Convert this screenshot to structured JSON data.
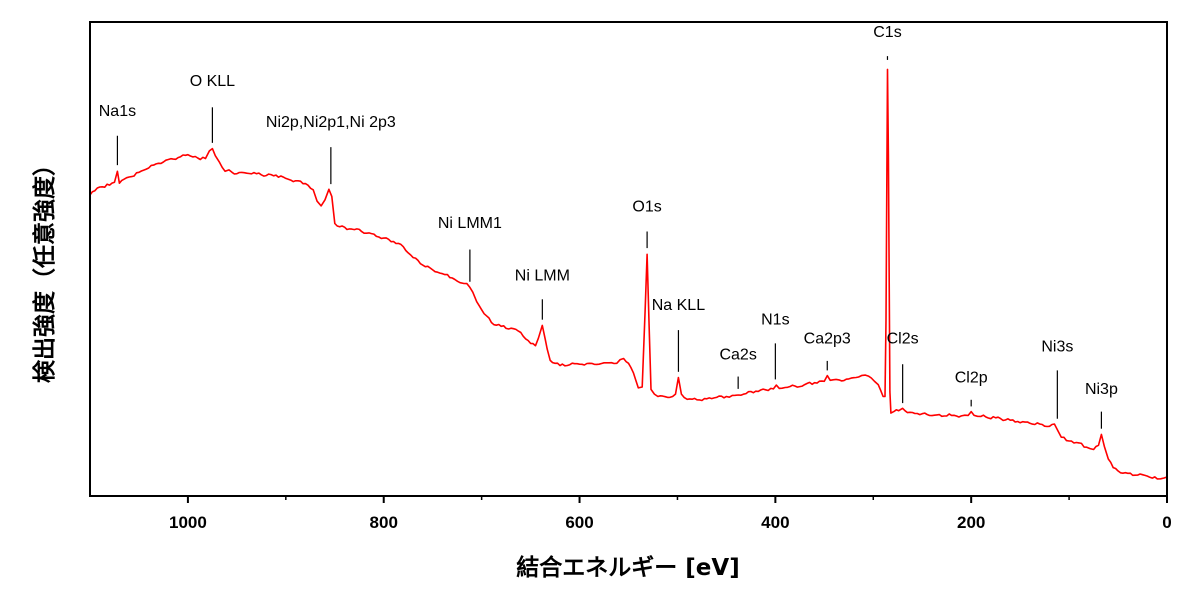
{
  "chart_data": {
    "type": "line",
    "xlabel": "結合エネルギー [eV]",
    "ylabel": "検出強度（任意強度）",
    "xlim": [
      1100,
      0
    ],
    "ylim": [
      0,
      100
    ],
    "x_reversed": true,
    "y_tick_labels": false,
    "grid": false,
    "line_color": "#ff0000",
    "x_ticks": [
      {
        "value": 1000,
        "label": "1000"
      },
      {
        "value": 800,
        "label": "800"
      },
      {
        "value": 600,
        "label": "600"
      },
      {
        "value": 400,
        "label": "400"
      },
      {
        "value": 200,
        "label": "200"
      },
      {
        "value": 0,
        "label": "0"
      }
    ],
    "series": [
      {
        "color": "#ff0000",
        "points": [
          [
            1100,
            63.5
          ],
          [
            1090,
            65.2
          ],
          [
            1080,
            65.6
          ],
          [
            1075,
            66.2
          ],
          [
            1072,
            68.5
          ],
          [
            1070,
            66.0
          ],
          [
            1060,
            67.3
          ],
          [
            1050,
            68.3
          ],
          [
            1040,
            69.2
          ],
          [
            1030,
            70.2
          ],
          [
            1020,
            71.0
          ],
          [
            1010,
            71.4
          ],
          [
            1000,
            72.0
          ],
          [
            990,
            71.3
          ],
          [
            982,
            71.2
          ],
          [
            978,
            72.8
          ],
          [
            975,
            73.3
          ],
          [
            972,
            71.8
          ],
          [
            968,
            70.5
          ],
          [
            962,
            68.5
          ],
          [
            958,
            68.8
          ],
          [
            955,
            68.3
          ],
          [
            950,
            68.0
          ],
          [
            940,
            68.1
          ],
          [
            930,
            68.0
          ],
          [
            920,
            67.6
          ],
          [
            910,
            67.7
          ],
          [
            900,
            67.0
          ],
          [
            890,
            66.5
          ],
          [
            880,
            65.9
          ],
          [
            872,
            64.6
          ],
          [
            868,
            62.2
          ],
          [
            864,
            61.2
          ],
          [
            860,
            62.5
          ],
          [
            856,
            64.7
          ],
          [
            853,
            63.2
          ],
          [
            850,
            57.5
          ],
          [
            845,
            56.8
          ],
          [
            830,
            56.2
          ],
          [
            815,
            55.5
          ],
          [
            800,
            54.4
          ],
          [
            790,
            53.7
          ],
          [
            780,
            52.6
          ],
          [
            770,
            50.3
          ],
          [
            760,
            48.7
          ],
          [
            750,
            47.7
          ],
          [
            740,
            46.9
          ],
          [
            730,
            46.0
          ],
          [
            722,
            45.0
          ],
          [
            715,
            44.8
          ],
          [
            712,
            44.0
          ],
          [
            709,
            43.0
          ],
          [
            705,
            41.0
          ],
          [
            700,
            39.3
          ],
          [
            690,
            36.6
          ],
          [
            680,
            35.8
          ],
          [
            670,
            35.4
          ],
          [
            660,
            34.5
          ],
          [
            650,
            32.2
          ],
          [
            645,
            31.7
          ],
          [
            642,
            33.3
          ],
          [
            638,
            36.0
          ],
          [
            635,
            33.0
          ],
          [
            633,
            31.0
          ],
          [
            630,
            28.6
          ],
          [
            620,
            27.5
          ],
          [
            610,
            27.7
          ],
          [
            600,
            27.8
          ],
          [
            590,
            28.0
          ],
          [
            580,
            27.8
          ],
          [
            570,
            28.1
          ],
          [
            562,
            28.0
          ],
          [
            555,
            29.0
          ],
          [
            550,
            28.0
          ],
          [
            545,
            26.0
          ],
          [
            540,
            22.8
          ],
          [
            536,
            23.0
          ],
          [
            533,
            39.0
          ],
          [
            531,
            51.0
          ],
          [
            529,
            36.0
          ],
          [
            527,
            22.5
          ],
          [
            520,
            21.0
          ],
          [
            510,
            20.8
          ],
          [
            505,
            21.0
          ],
          [
            502,
            21.5
          ],
          [
            499,
            25.0
          ],
          [
            496,
            21.5
          ],
          [
            490,
            20.4
          ],
          [
            480,
            20.3
          ],
          [
            470,
            20.5
          ],
          [
            460,
            20.8
          ],
          [
            450,
            21.0
          ],
          [
            438,
            21.3
          ],
          [
            430,
            21.6
          ],
          [
            420,
            22.1
          ],
          [
            410,
            22.4
          ],
          [
            402,
            22.6
          ],
          [
            399,
            23.4
          ],
          [
            396,
            22.7
          ],
          [
            390,
            22.9
          ],
          [
            380,
            23.2
          ],
          [
            370,
            23.5
          ],
          [
            360,
            23.9
          ],
          [
            350,
            24.2
          ],
          [
            347,
            25.4
          ],
          [
            344,
            24.4
          ],
          [
            335,
            24.5
          ],
          [
            325,
            24.7
          ],
          [
            315,
            25.1
          ],
          [
            308,
            25.5
          ],
          [
            302,
            24.9
          ],
          [
            295,
            23.5
          ],
          [
            290,
            21.0
          ],
          [
            288,
            21.0
          ],
          [
            287,
            37.0
          ],
          [
            285.5,
            90.0
          ],
          [
            284.5,
            72.0
          ],
          [
            283,
            22.0
          ],
          [
            282,
            17.5
          ],
          [
            279,
            17.8
          ],
          [
            274,
            18.0
          ],
          [
            270,
            18.5
          ],
          [
            265,
            17.6
          ],
          [
            255,
            17.4
          ],
          [
            245,
            17.2
          ],
          [
            235,
            17.1
          ],
          [
            220,
            17.0
          ],
          [
            210,
            16.9
          ],
          [
            203,
            17.0
          ],
          [
            200,
            17.8
          ],
          [
            197,
            17.0
          ],
          [
            190,
            16.8
          ],
          [
            175,
            16.5
          ],
          [
            160,
            16.0
          ],
          [
            145,
            15.6
          ],
          [
            130,
            15.2
          ],
          [
            120,
            14.7
          ],
          [
            115,
            15.2
          ],
          [
            112,
            14.0
          ],
          [
            108,
            12.4
          ],
          [
            100,
            11.6
          ],
          [
            90,
            11.2
          ],
          [
            82,
            10.3
          ],
          [
            75,
            9.8
          ],
          [
            70,
            10.7
          ],
          [
            67,
            13.0
          ],
          [
            64,
            10.5
          ],
          [
            60,
            7.8
          ],
          [
            55,
            6.0
          ],
          [
            50,
            5.3
          ],
          [
            45,
            4.8
          ],
          [
            30,
            4.4
          ],
          [
            20,
            4.2
          ],
          [
            10,
            3.6
          ],
          [
            3,
            3.8
          ],
          [
            0,
            4.0
          ]
        ]
      }
    ],
    "annotations": [
      {
        "text": "Na1s",
        "x": 1072,
        "y": 68.5,
        "text_y": 80.2,
        "line_y1": 69.8,
        "line_y2": 76.0
      },
      {
        "text": "O KLL",
        "x": 975,
        "y": 73.3,
        "text_y": 86.5,
        "line_y1": 74.5,
        "line_y2": 82.0
      },
      {
        "text": "Ni2p,Ni2p1,Ni 2p3",
        "x": 854,
        "y": 64.7,
        "text_y": 77.9,
        "line_y1": 65.8,
        "line_y2": 73.6
      },
      {
        "text": "Ni LMM1",
        "x": 712,
        "y": 44.0,
        "text_y": 56.5,
        "line_y1": 45.2,
        "line_y2": 52.0
      },
      {
        "text": "Ni LMM",
        "x": 638,
        "y": 36.0,
        "text_y": 45.5,
        "line_y1": 37.2,
        "line_y2": 41.5
      },
      {
        "text": "O1s",
        "x": 531,
        "y": 51.0,
        "text_y": 60.0,
        "line_y1": 52.3,
        "line_y2": 55.8
      },
      {
        "text": "Na KLL",
        "x": 499,
        "y": 25.0,
        "text_y": 39.2,
        "line_y1": 26.2,
        "line_y2": 35.0
      },
      {
        "text": "Ca2s",
        "x": 438,
        "y": 21.3,
        "text_y": 28.8,
        "line_y1": 22.6,
        "line_y2": 25.2
      },
      {
        "text": "N1s",
        "x": 400,
        "y": 23.4,
        "text_y": 36.2,
        "line_y1": 24.6,
        "line_y2": 32.2
      },
      {
        "text": "Ca2p3",
        "x": 347,
        "y": 25.4,
        "text_y": 32.2,
        "line_y1": 26.5,
        "line_y2": 28.5
      },
      {
        "text": "C1s",
        "x": 285.5,
        "y": 90.0,
        "text_y": 96.8,
        "line_y1": 92.0,
        "line_y2": 92.8
      },
      {
        "text": "Cl2s",
        "x": 270,
        "y": 18.5,
        "text_y": 32.2,
        "line_y1": 19.6,
        "line_y2": 27.8
      },
      {
        "text": "Cl2p",
        "x": 200,
        "y": 17.8,
        "text_y": 23.9,
        "line_y1": 18.9,
        "line_y2": 20.3
      },
      {
        "text": "Ni3s",
        "x": 112,
        "y": 15.2,
        "text_y": 30.5,
        "line_y1": 16.3,
        "line_y2": 26.5
      },
      {
        "text": "Ni3p",
        "x": 67,
        "y": 13.0,
        "text_y": 21.5,
        "line_y1": 14.2,
        "line_y2": 17.8
      }
    ]
  }
}
